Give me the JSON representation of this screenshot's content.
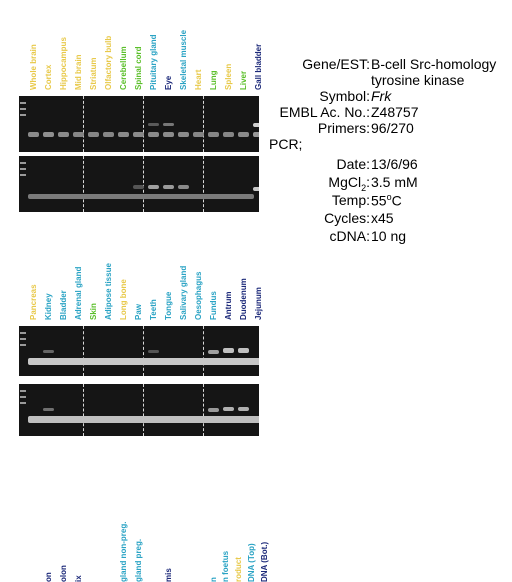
{
  "panels": [
    {
      "labels": [
        {
          "text": "Whole brain",
          "color": "#e8c94a"
        },
        {
          "text": "Cortex",
          "color": "#e8c94a"
        },
        {
          "text": "Hippocampus",
          "color": "#e8c94a"
        },
        {
          "text": "Mid brain",
          "color": "#e8c94a"
        },
        {
          "text": "Striatum",
          "color": "#e8c94a"
        },
        {
          "text": "Olfactory bulb",
          "color": "#e8c94a"
        },
        {
          "text": "Cerebellum",
          "color": "#5bbf2a"
        },
        {
          "text": "Spinal cord",
          "color": "#5bbf2a"
        },
        {
          "text": "Pituitary gland",
          "color": "#2aa3c4"
        },
        {
          "text": "Eye",
          "color": "#1d2a7a"
        },
        {
          "text": "Skeletal muscle",
          "color": "#2aa3c4"
        },
        {
          "text": "Heart",
          "color": "#e8c94a"
        },
        {
          "text": "Lung",
          "color": "#5bbf2a"
        },
        {
          "text": "Spleen",
          "color": "#e8c94a"
        },
        {
          "text": "Liver",
          "color": "#5bbf2a"
        },
        {
          "text": "Gall bladder",
          "color": "#1d2a7a"
        }
      ]
    },
    {
      "labels": [
        {
          "text": "Pancreas",
          "color": "#e8c94a"
        },
        {
          "text": "Kidney",
          "color": "#2aa3c4"
        },
        {
          "text": "Bladder",
          "color": "#2aa3c4"
        },
        {
          "text": "Adrenal gland",
          "color": "#2aa3c4"
        },
        {
          "text": "Skin",
          "color": "#5bbf2a"
        },
        {
          "text": "Adipose tissue",
          "color": "#2aa3c4"
        },
        {
          "text": "Long bone",
          "color": "#e8c94a"
        },
        {
          "text": "Paw",
          "color": "#2aa3c4"
        },
        {
          "text": "Teeth",
          "color": "#2aa3c4"
        },
        {
          "text": "Tongue",
          "color": "#2aa3c4"
        },
        {
          "text": "Salivary gland",
          "color": "#2aa3c4"
        },
        {
          "text": "Oesophagus",
          "color": "#2aa3c4"
        },
        {
          "text": "Fundus",
          "color": "#2aa3c4"
        },
        {
          "text": "Antrum",
          "color": "#1d2a7a"
        },
        {
          "text": "Duodenum",
          "color": "#1d2a7a"
        },
        {
          "text": "Jejunum",
          "color": "#1d2a7a"
        }
      ]
    },
    {
      "labels": [
        {
          "text": "",
          "color": "#2aa3c4"
        },
        {
          "text": "",
          "color": "#2aa3c4"
        },
        {
          "text": "on",
          "color": "#1d2a7a"
        },
        {
          "text": "olon",
          "color": "#1d2a7a"
        },
        {
          "text": "ix",
          "color": "#1d2a7a"
        },
        {
          "text": "",
          "color": "#2aa3c4"
        },
        {
          "text": "gland non-preg.",
          "color": "#2aa3c4"
        },
        {
          "text": "gland preg.",
          "color": "#2aa3c4"
        },
        {
          "text": "",
          "color": "#2aa3c4"
        },
        {
          "text": "mis",
          "color": "#1d2a7a"
        },
        {
          "text": "",
          "color": "#2aa3c4"
        },
        {
          "text": "n",
          "color": "#2aa3c4"
        },
        {
          "text": "n foetus",
          "color": "#2aa3c4"
        },
        {
          "text": "roduct",
          "color": "#e8c94a"
        },
        {
          "text": "DNA (Top)",
          "color": "#2aa3c4"
        },
        {
          "text": "DNA (Bot.)",
          "color": "#1d2a7a"
        }
      ]
    }
  ],
  "info": {
    "gene_key": "Gene/EST:",
    "gene_value_1": "B-cell Src-homology",
    "gene_value_2": "tyrosine kinase",
    "symbol_key": "Symbol:",
    "symbol_value": "Frk",
    "embl_key": "EMBL Ac. No.:",
    "embl_value": "Z48757",
    "primers_key": "Primers:",
    "primers_value": "96/270",
    "pcr_label": "PCR;",
    "date_key": "Date:",
    "date_value": "13/6/96",
    "mgcl_key": "MgCl",
    "mgcl_sub": "2",
    "mgcl_colon": ":",
    "mgcl_value": "3.5 mM",
    "temp_key": "Temp:",
    "temp_value": "55",
    "temp_sup": "o",
    "temp_unit": "C",
    "cycles_key": "Cycles:",
    "cycles_value": "x45",
    "cdna_key": "cDNA:",
    "cdna_value": "10 ng"
  }
}
